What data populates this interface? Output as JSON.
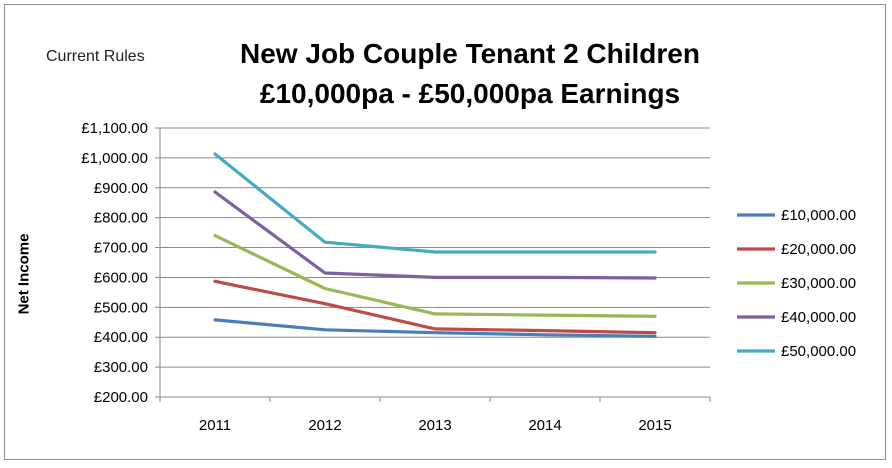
{
  "note": "Current Rules",
  "chart_data": {
    "type": "line",
    "title_line1": "New Job Couple Tenant 2 Children",
    "title_line2": "£10,000pa - £50,000pa Earnings",
    "ylabel": "Net Income",
    "xlabel": "",
    "categories": [
      "2011",
      "2012",
      "2013",
      "2014",
      "2015"
    ],
    "ylim": [
      200,
      1100
    ],
    "yticks": [
      "£200.00",
      "£300.00",
      "£400.00",
      "£500.00",
      "£600.00",
      "£700.00",
      "£800.00",
      "£900.00",
      "£1,000.00",
      "£1,100.00"
    ],
    "grid": true,
    "legend_position": "right",
    "series": [
      {
        "name": "£10,000.00",
        "color": "#4a7ebb",
        "values": [
          458,
          425,
          415,
          408,
          403
        ]
      },
      {
        "name": "£20,000.00",
        "color": "#be4b48",
        "values": [
          587,
          512,
          428,
          422,
          415
        ]
      },
      {
        "name": "£30,000.00",
        "color": "#98b954",
        "values": [
          740,
          563,
          478,
          474,
          470
        ]
      },
      {
        "name": "£40,000.00",
        "color": "#7d60a0",
        "values": [
          886,
          615,
          600,
          600,
          598
        ]
      },
      {
        "name": "£50,000.00",
        "color": "#46aac5",
        "values": [
          1013,
          718,
          685,
          685,
          685
        ]
      }
    ]
  }
}
